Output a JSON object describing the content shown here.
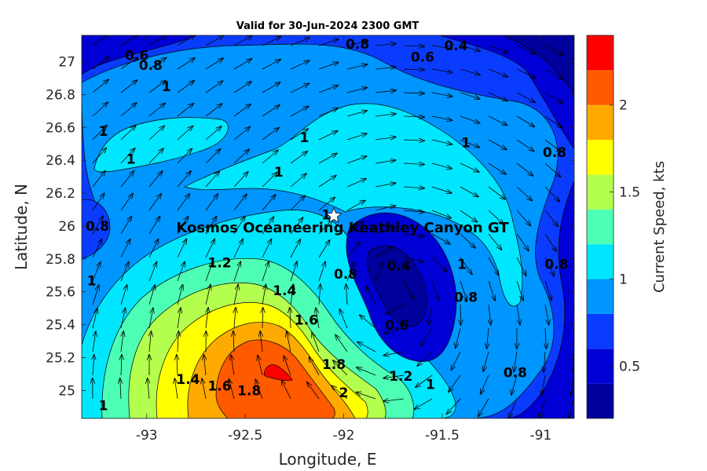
{
  "title": "Valid for 30-Jun-2024 2300 GMT",
  "site_name": "Kosmos Oceaneering Keathley Canyon GT",
  "site_location": {
    "lon": -92.02,
    "lat": 26.07
  },
  "axes": {
    "xlabel": "Longitude, E",
    "ylabel": "Latitude, N",
    "xlim": [
      -93.33,
      -90.83
    ],
    "ylim": [
      24.83,
      27.16
    ],
    "xticks": [
      -93,
      -92.5,
      -92,
      -91.5,
      -91
    ],
    "xtick_labels": [
      "-93",
      "-92.5",
      "-92",
      "-91.5",
      "-91"
    ],
    "yticks": [
      25,
      25.2,
      25.4,
      25.6,
      25.8,
      26,
      26.2,
      26.4,
      26.6,
      26.8,
      27
    ],
    "ytick_labels": [
      "25",
      "25.2",
      "25.4",
      "25.6",
      "25.8",
      "26",
      "26.2",
      "26.4",
      "26.6",
      "26.8",
      "27"
    ]
  },
  "colorbar": {
    "label": "Current Speed, kts",
    "range": [
      0.2,
      2.4
    ],
    "levels": [
      0.2,
      0.4,
      0.6,
      0.8,
      1.0,
      1.2,
      1.4,
      1.6,
      1.8,
      2.0,
      2.2,
      2.4
    ],
    "colors": [
      "#00009c",
      "#0000d6",
      "#0a3cff",
      "#0096ff",
      "#00e6ff",
      "#4dffb4",
      "#b4ff4d",
      "#ffff00",
      "#ffaa00",
      "#ff5a00",
      "#ff0000"
    ],
    "ticks": [
      0.5,
      1,
      1.5,
      2
    ],
    "tick_labels": [
      "0.5",
      "1",
      "1.5",
      "2"
    ]
  },
  "contour_labels": [
    {
      "text": "0.6",
      "lon": -93.05,
      "lat": 27.01
    },
    {
      "text": "0.8",
      "lon": -92.98,
      "lat": 26.95
    },
    {
      "text": "1",
      "lon": -92.9,
      "lat": 26.82
    },
    {
      "text": "0.8",
      "lon": -91.93,
      "lat": 27.08
    },
    {
      "text": "0.6",
      "lon": -91.6,
      "lat": 27.0
    },
    {
      "text": "0.4",
      "lon": -91.43,
      "lat": 27.07
    },
    {
      "text": "1",
      "lon": -93.22,
      "lat": 26.55
    },
    {
      "text": "1",
      "lon": -93.08,
      "lat": 26.38
    },
    {
      "text": "1",
      "lon": -92.2,
      "lat": 26.51
    },
    {
      "text": "1",
      "lon": -92.33,
      "lat": 26.3
    },
    {
      "text": "1",
      "lon": -91.38,
      "lat": 26.48
    },
    {
      "text": "0.8",
      "lon": -90.93,
      "lat": 26.42
    },
    {
      "text": "0.8",
      "lon": -93.25,
      "lat": 25.97
    },
    {
      "text": "1",
      "lon": -92.09,
      "lat": 26.04
    },
    {
      "text": "1.2",
      "lon": -92.63,
      "lat": 25.75
    },
    {
      "text": "0.4",
      "lon": -91.72,
      "lat": 25.73
    },
    {
      "text": "0.8",
      "lon": -91.99,
      "lat": 25.68
    },
    {
      "text": "1",
      "lon": -91.4,
      "lat": 25.74
    },
    {
      "text": "0.8",
      "lon": -90.92,
      "lat": 25.74
    },
    {
      "text": "1",
      "lon": -93.28,
      "lat": 25.64
    },
    {
      "text": "1.4",
      "lon": -92.3,
      "lat": 25.58
    },
    {
      "text": "0.8",
      "lon": -91.38,
      "lat": 25.54
    },
    {
      "text": "1.6",
      "lon": -92.19,
      "lat": 25.4
    },
    {
      "text": "0.6",
      "lon": -91.73,
      "lat": 25.37
    },
    {
      "text": "1.8",
      "lon": -92.05,
      "lat": 25.13
    },
    {
      "text": "1.2",
      "lon": -91.71,
      "lat": 25.06
    },
    {
      "text": "1",
      "lon": -91.56,
      "lat": 25.01
    },
    {
      "text": "0.8",
      "lon": -91.13,
      "lat": 25.08
    },
    {
      "text": "1.4",
      "lon": -92.79,
      "lat": 25.04
    },
    {
      "text": "1.6",
      "lon": -92.63,
      "lat": 25.0
    },
    {
      "text": "1.8",
      "lon": -92.48,
      "lat": 24.97
    },
    {
      "text": "2",
      "lon": -92.0,
      "lat": 24.96
    },
    {
      "text": "1",
      "lon": -93.22,
      "lat": 24.88
    }
  ]
}
